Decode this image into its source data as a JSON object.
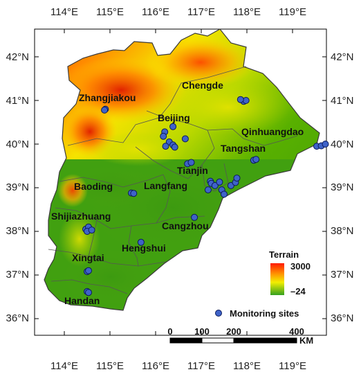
{
  "colors": {
    "terrain_low": "#3c9a10",
    "terrain_mid": "#f2ee00",
    "terrain_high": "#ff1a00",
    "site_fill": "#3f63c9",
    "site_stroke": "#0a1a5a",
    "boundary": "#555555"
  },
  "axes": {
    "lon_ticks": [
      "114°E",
      "115°E",
      "116°E",
      "117°E",
      "118°E",
      "119°E"
    ],
    "lat_ticks": [
      "42°N",
      "41°N",
      "40°N",
      "39°N",
      "38°N",
      "37°N",
      "36°N"
    ]
  },
  "cities": [
    {
      "name": "Zhangjiakou"
    },
    {
      "name": "Chengde"
    },
    {
      "name": "Beijing"
    },
    {
      "name": "Qinhuangdao"
    },
    {
      "name": "Tangshan"
    },
    {
      "name": "Tianjin"
    },
    {
      "name": "Baoding"
    },
    {
      "name": "Langfang"
    },
    {
      "name": "Shijiazhuang"
    },
    {
      "name": "Cangzhou"
    },
    {
      "name": "Hengshui"
    },
    {
      "name": "Xingtai"
    },
    {
      "name": "Handan"
    }
  ],
  "legend": {
    "terrain_title": "Terrain",
    "terrain_max": "3000",
    "terrain_min": "–24",
    "sites_label": "Monitoring sites"
  },
  "scale_bar": {
    "labels": [
      "0",
      "100",
      "200",
      "400"
    ],
    "unit": "KM"
  },
  "monitoring_sites": [
    {
      "lon": 114.9,
      "lat": 40.8
    },
    {
      "lon": 114.88,
      "lat": 40.78
    },
    {
      "lon": 117.93,
      "lat": 40.98
    },
    {
      "lon": 117.98,
      "lat": 41.0
    },
    {
      "lon": 117.86,
      "lat": 41.02
    },
    {
      "lon": 116.2,
      "lat": 40.28
    },
    {
      "lon": 116.38,
      "lat": 40.4
    },
    {
      "lon": 116.17,
      "lat": 40.18
    },
    {
      "lon": 116.3,
      "lat": 40.05
    },
    {
      "lon": 116.38,
      "lat": 39.98
    },
    {
      "lon": 116.22,
      "lat": 39.95
    },
    {
      "lon": 116.42,
      "lat": 39.93
    },
    {
      "lon": 116.65,
      "lat": 40.12
    },
    {
      "lon": 119.53,
      "lat": 39.95
    },
    {
      "lon": 119.63,
      "lat": 39.96
    },
    {
      "lon": 119.72,
      "lat": 40.0
    },
    {
      "lon": 118.15,
      "lat": 39.63
    },
    {
      "lon": 118.2,
      "lat": 39.65
    },
    {
      "lon": 116.7,
      "lat": 39.55
    },
    {
      "lon": 116.78,
      "lat": 39.58
    },
    {
      "lon": 117.2,
      "lat": 39.15
    },
    {
      "lon": 117.22,
      "lat": 39.1
    },
    {
      "lon": 117.3,
      "lat": 39.05
    },
    {
      "lon": 117.4,
      "lat": 39.13
    },
    {
      "lon": 117.45,
      "lat": 38.95
    },
    {
      "lon": 117.15,
      "lat": 38.95
    },
    {
      "lon": 117.65,
      "lat": 39.05
    },
    {
      "lon": 117.75,
      "lat": 39.12
    },
    {
      "lon": 117.78,
      "lat": 39.22
    },
    {
      "lon": 117.5,
      "lat": 38.85
    },
    {
      "lon": 115.47,
      "lat": 38.88
    },
    {
      "lon": 115.52,
      "lat": 38.87
    },
    {
      "lon": 114.47,
      "lat": 38.05
    },
    {
      "lon": 114.53,
      "lat": 38.1
    },
    {
      "lon": 114.5,
      "lat": 38.0
    },
    {
      "lon": 114.6,
      "lat": 38.03
    },
    {
      "lon": 116.85,
      "lat": 38.32
    },
    {
      "lon": 115.68,
      "lat": 37.75
    },
    {
      "lon": 114.5,
      "lat": 37.08
    },
    {
      "lon": 114.53,
      "lat": 37.1
    },
    {
      "lon": 114.5,
      "lat": 36.62
    },
    {
      "lon": 114.53,
      "lat": 36.6
    }
  ]
}
